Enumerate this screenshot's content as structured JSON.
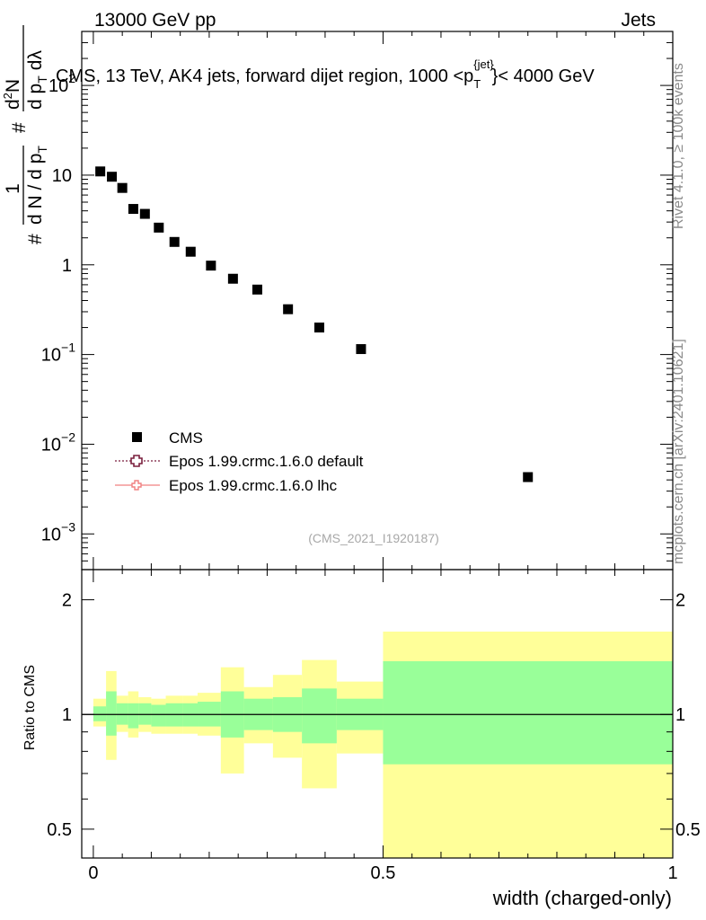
{
  "header": {
    "energy_label": "13000 GeV pp",
    "category_label": "Jets"
  },
  "side_text": {
    "rivet": "Rivet 4.1.0, ≥ 100k events",
    "source": "mcplots.cern.ch [arXiv:2401.10621]"
  },
  "chart_data": [
    {
      "type": "scatter",
      "panel": "main",
      "title": "CMS, 13 TeV, AK4 jets, forward dijet region, 1000 <p_T^{jet}< 4000 GeV",
      "title_parts": {
        "pre": "CMS, 13 TeV, AK4 jets, forward dijet region, 1000 <p",
        "sub": "T",
        "sup": "{jet}",
        "post": "}< 4000 GeV"
      },
      "ylabel": "1/dN/dp_T # d^2N/dp_T dλ",
      "ylabel_parts": {
        "hash": "#",
        "one": "1",
        "denominator": "d N / d p",
        "denominator_sub": "T",
        "numerator": "d",
        "numerator_sup": "2",
        "numerator_N": "N",
        "dp": "d p",
        "dp_sub": "T",
        "dlambda": "dλ"
      },
      "yscale": "log",
      "ylim": [
        0.0004,
        400
      ],
      "xlim": [
        -0.02,
        1.0
      ],
      "y_ticks": [
        {
          "value": 0.001,
          "base": "10",
          "exp": "−3"
        },
        {
          "value": 0.01,
          "base": "10",
          "exp": "−2"
        },
        {
          "value": 0.1,
          "base": "10",
          "exp": "−1"
        },
        {
          "value": 1,
          "base": "1",
          "exp": ""
        },
        {
          "value": 10,
          "base": "10",
          "exp": ""
        },
        {
          "value": 100,
          "base": "10",
          "exp": "2"
        }
      ],
      "series": [
        {
          "name": "CMS",
          "marker": "square",
          "color": "#000000",
          "x": [
            0.012,
            0.032,
            0.05,
            0.069,
            0.089,
            0.113,
            0.14,
            0.168,
            0.203,
            0.241,
            0.283,
            0.336,
            0.39,
            0.462,
            0.75
          ],
          "y": [
            11.0,
            9.6,
            7.2,
            4.2,
            3.7,
            2.6,
            1.8,
            1.4,
            0.98,
            0.7,
            0.53,
            0.32,
            0.2,
            0.115,
            0.0043
          ]
        }
      ],
      "legend": {
        "placement": "bottom-left",
        "entries": [
          {
            "label": "CMS",
            "style": "square",
            "color": "#000000"
          },
          {
            "label": "Epos 1.99.crmc.1.6.0 default",
            "style": "dotted-cross",
            "color": "#7a1f3d"
          },
          {
            "label": "Epos 1.99.crmc.1.6.0 lhc",
            "style": "solid-cross",
            "color": "#f08080"
          }
        ]
      },
      "annotation": "(CMS_2021_I1920187)"
    },
    {
      "type": "area",
      "panel": "ratio",
      "ylabel": "Ratio to CMS",
      "xlabel": "width (charged-only)",
      "yscale": "log",
      "ylim": [
        0.42,
        2.4
      ],
      "xlim": [
        -0.02,
        1.0
      ],
      "x_ticks": [
        {
          "value": 0,
          "label": "0"
        },
        {
          "value": 0.5,
          "label": "0.5"
        },
        {
          "value": 1,
          "label": "1"
        }
      ],
      "y_ticks": [
        {
          "value": 0.5,
          "label": "0.5"
        },
        {
          "value": 1,
          "label": "1"
        },
        {
          "value": 2,
          "label": "2"
        }
      ],
      "reference_line": 1,
      "bands": [
        {
          "x0": 0.0,
          "x1": 0.022,
          "inner": [
            0.96,
            1.05
          ],
          "outer": [
            0.93,
            1.1
          ]
        },
        {
          "x0": 0.022,
          "x1": 0.04,
          "inner": [
            0.88,
            1.15
          ],
          "outer": [
            0.76,
            1.3
          ]
        },
        {
          "x0": 0.04,
          "x1": 0.06,
          "inner": [
            0.94,
            1.07
          ],
          "outer": [
            0.9,
            1.12
          ]
        },
        {
          "x0": 0.06,
          "x1": 0.078,
          "inner": [
            0.92,
            1.07
          ],
          "outer": [
            0.87,
            1.15
          ]
        },
        {
          "x0": 0.078,
          "x1": 0.1,
          "inner": [
            0.94,
            1.07
          ],
          "outer": [
            0.9,
            1.11
          ]
        },
        {
          "x0": 0.1,
          "x1": 0.125,
          "inner": [
            0.93,
            1.06
          ],
          "outer": [
            0.89,
            1.1
          ]
        },
        {
          "x0": 0.125,
          "x1": 0.155,
          "inner": [
            0.93,
            1.07
          ],
          "outer": [
            0.89,
            1.12
          ]
        },
        {
          "x0": 0.155,
          "x1": 0.18,
          "inner": [
            0.93,
            1.07
          ],
          "outer": [
            0.89,
            1.12
          ]
        },
        {
          "x0": 0.18,
          "x1": 0.22,
          "inner": [
            0.93,
            1.08
          ],
          "outer": [
            0.88,
            1.14
          ]
        },
        {
          "x0": 0.22,
          "x1": 0.26,
          "inner": [
            0.87,
            1.15
          ],
          "outer": [
            0.7,
            1.33
          ]
        },
        {
          "x0": 0.26,
          "x1": 0.31,
          "inner": [
            0.91,
            1.1
          ],
          "outer": [
            0.84,
            1.18
          ]
        },
        {
          "x0": 0.31,
          "x1": 0.36,
          "inner": [
            0.9,
            1.11
          ],
          "outer": [
            0.77,
            1.27
          ]
        },
        {
          "x0": 0.36,
          "x1": 0.42,
          "inner": [
            0.84,
            1.17
          ],
          "outer": [
            0.64,
            1.39
          ]
        },
        {
          "x0": 0.42,
          "x1": 0.5,
          "inner": [
            0.91,
            1.1
          ],
          "outer": [
            0.79,
            1.22
          ]
        },
        {
          "x0": 0.5,
          "x1": 1.0,
          "inner": [
            0.74,
            1.38
          ],
          "outer": [
            0.42,
            1.65
          ]
        }
      ],
      "band_colors": {
        "inner": "#99ff99",
        "outer": "#ffff99"
      }
    }
  ]
}
